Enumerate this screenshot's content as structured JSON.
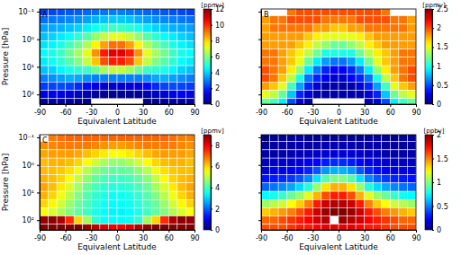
{
  "chart_data": [
    {
      "type": "heatmap",
      "title": "A",
      "x_label": "Equivalent Latitude",
      "y_label": "Pressure [hPa]",
      "log": "y",
      "xlim": [
        -90,
        90
      ],
      "xticks": [
        -90,
        -60,
        -30,
        0,
        30,
        60,
        90
      ],
      "ylim": [
        225,
        0.08
      ],
      "yticks": [
        {
          "value": 0.1,
          "label": "10⁻¹"
        },
        {
          "value": 1,
          "label": "10⁰"
        },
        {
          "value": 10,
          "label": "10¹"
        },
        {
          "value": 100,
          "label": "10²"
        }
      ],
      "x": [
        -85,
        -75,
        -65,
        -55,
        -45,
        -35,
        -25,
        -15,
        -5,
        5,
        15,
        25,
        35,
        45,
        55,
        65,
        75,
        85
      ],
      "y": [
        0.1,
        0.2,
        0.4,
        0.8,
        1.6,
        3.2,
        6.3,
        13,
        25,
        50,
        100,
        200
      ],
      "z": [
        [
          2.2,
          2.3,
          2.4,
          2.5,
          2.6,
          2.7,
          2.8,
          2.9,
          3.0,
          3.0,
          2.9,
          2.8,
          2.7,
          2.6,
          2.5,
          2.4,
          2.3,
          2.2
        ],
        [
          2.8,
          2.9,
          3.0,
          3.1,
          3.2,
          3.4,
          3.6,
          3.8,
          3.9,
          3.9,
          3.8,
          3.6,
          3.4,
          3.2,
          3.1,
          3.0,
          2.9,
          2.8
        ],
        [
          3.4,
          3.5,
          3.6,
          3.8,
          4.0,
          4.3,
          4.7,
          5.0,
          5.2,
          5.2,
          5.0,
          4.7,
          4.3,
          4.0,
          3.8,
          3.6,
          3.5,
          3.4
        ],
        [
          3.8,
          4.0,
          4.3,
          4.6,
          5.0,
          5.5,
          6.2,
          6.8,
          7.2,
          7.2,
          6.8,
          6.2,
          5.5,
          5.0,
          4.6,
          4.3,
          4.0,
          3.8
        ],
        [
          4.2,
          4.4,
          4.8,
          5.3,
          5.8,
          6.5,
          7.6,
          8.6,
          9.2,
          9.2,
          8.6,
          7.6,
          6.5,
          5.8,
          5.3,
          4.8,
          4.4,
          4.2
        ],
        [
          4.5,
          4.8,
          5.2,
          5.8,
          6.4,
          7.2,
          8.8,
          10.2,
          10.8,
          10.8,
          10.2,
          8.8,
          7.2,
          6.4,
          5.8,
          5.2,
          4.8,
          4.5
        ],
        [
          4.3,
          4.6,
          5.0,
          5.5,
          6.0,
          6.8,
          8.2,
          9.6,
          10.2,
          10.2,
          9.6,
          8.2,
          6.8,
          6.0,
          5.5,
          5.0,
          4.6,
          4.3
        ],
        [
          3.8,
          4.0,
          4.4,
          4.8,
          5.0,
          5.2,
          5.8,
          6.4,
          6.8,
          6.8,
          6.4,
          5.8,
          5.2,
          5.0,
          4.8,
          4.4,
          4.0,
          3.8
        ],
        [
          3.0,
          3.2,
          3.4,
          3.6,
          3.5,
          3.2,
          3.0,
          3.0,
          3.0,
          3.0,
          3.0,
          3.0,
          3.2,
          3.5,
          3.6,
          3.4,
          3.2,
          3.0
        ],
        [
          2.2,
          2.3,
          2.4,
          2.3,
          2.0,
          1.6,
          1.2,
          1.0,
          0.9,
          0.9,
          1.0,
          1.2,
          1.6,
          2.0,
          2.3,
          2.4,
          2.3,
          2.2
        ],
        [
          1.2,
          1.3,
          1.2,
          1.0,
          0.8,
          0.5,
          0.3,
          0.2,
          0.2,
          0.2,
          0.2,
          0.3,
          0.5,
          0.8,
          1.0,
          1.2,
          1.3,
          1.2
        ],
        [
          0.4,
          0.4,
          0.4,
          0.3,
          0.2,
          0.1,
          null,
          null,
          null,
          null,
          null,
          null,
          0.1,
          0.2,
          0.3,
          0.4,
          0.4,
          0.4
        ]
      ],
      "zlim": [
        0,
        12
      ],
      "zticks": [
        0,
        2,
        4,
        6,
        8,
        10,
        12
      ],
      "colorbar_label": "[ppmv]"
    },
    {
      "type": "heatmap",
      "title": "B",
      "x_label": "Equivalent Latitude",
      "log": "y",
      "tick_labels": "x",
      "xlim": [
        -90,
        90
      ],
      "xticks": [
        -90,
        -60,
        -30,
        0,
        30,
        60,
        90
      ],
      "ylim": [
        225,
        0.08
      ],
      "yticks": [
        0.1,
        1,
        10,
        100
      ],
      "x": [
        -85,
        -75,
        -65,
        -55,
        -45,
        -35,
        -25,
        -15,
        -5,
        5,
        15,
        25,
        35,
        45,
        55,
        65,
        75,
        85
      ],
      "y": [
        0.1,
        0.2,
        0.4,
        0.8,
        1.6,
        3.2,
        6.3,
        13,
        25,
        50,
        100,
        200
      ],
      "z": [
        [
          null,
          null,
          null,
          1.9,
          2.0,
          2.0,
          2.0,
          2.0,
          2.0,
          2.0,
          2.0,
          2.0,
          2.0,
          2.0,
          1.9,
          null,
          null,
          null
        ],
        [
          1.8,
          1.9,
          1.9,
          2.0,
          2.0,
          2.0,
          2.0,
          1.9,
          1.9,
          1.9,
          1.9,
          2.0,
          2.0,
          2.0,
          2.0,
          1.9,
          1.9,
          1.8
        ],
        [
          1.8,
          1.9,
          1.9,
          1.9,
          1.9,
          1.9,
          1.8,
          1.8,
          1.7,
          1.7,
          1.8,
          1.8,
          1.9,
          1.9,
          1.9,
          1.9,
          1.9,
          1.8
        ],
        [
          1.8,
          1.8,
          1.8,
          1.8,
          1.8,
          1.7,
          1.6,
          1.5,
          1.5,
          1.5,
          1.5,
          1.6,
          1.7,
          1.8,
          1.8,
          1.8,
          1.8,
          1.8
        ],
        [
          1.8,
          1.8,
          1.8,
          1.8,
          1.7,
          1.6,
          1.4,
          1.3,
          1.2,
          1.2,
          1.3,
          1.4,
          1.6,
          1.7,
          1.8,
          1.8,
          1.8,
          1.8
        ],
        [
          1.9,
          1.9,
          1.8,
          1.7,
          1.6,
          1.4,
          1.2,
          1.0,
          1.0,
          1.0,
          1.0,
          1.2,
          1.4,
          1.6,
          1.7,
          1.8,
          1.9,
          1.9
        ],
        [
          1.9,
          1.9,
          1.8,
          1.7,
          1.5,
          1.2,
          0.9,
          0.7,
          0.6,
          0.6,
          0.7,
          0.9,
          1.2,
          1.5,
          1.7,
          1.8,
          1.9,
          1.9
        ],
        [
          2.0,
          1.9,
          1.8,
          1.6,
          1.3,
          0.9,
          0.6,
          0.4,
          0.3,
          0.3,
          0.4,
          0.6,
          0.9,
          1.3,
          1.6,
          1.8,
          1.9,
          2.0
        ],
        [
          2.0,
          1.9,
          1.7,
          1.4,
          1.0,
          0.6,
          0.4,
          0.3,
          0.2,
          0.2,
          0.3,
          0.4,
          0.6,
          1.0,
          1.4,
          1.7,
          1.9,
          2.0
        ],
        [
          1.8,
          1.7,
          1.5,
          1.1,
          0.7,
          0.4,
          0.2,
          0.1,
          0.1,
          0.1,
          0.1,
          0.2,
          0.4,
          0.7,
          1.1,
          1.5,
          1.7,
          1.8
        ],
        [
          1.5,
          1.4,
          1.2,
          0.8,
          0.4,
          0.2,
          0.1,
          0.1,
          0.1,
          0.1,
          0.1,
          0.1,
          0.2,
          0.4,
          0.8,
          1.2,
          1.4,
          1.5
        ],
        [
          1.2,
          1.1,
          0.9,
          0.5,
          0.2,
          0.1,
          null,
          null,
          null,
          null,
          null,
          null,
          0.1,
          0.2,
          0.5,
          0.9,
          1.1,
          1.2
        ]
      ],
      "zlim": [
        0,
        2.5
      ],
      "zticks": [
        0,
        0.5,
        1,
        1.5,
        2,
        2.5
      ],
      "colorbar_label": "[ppmv]"
    },
    {
      "type": "heatmap",
      "title": "C",
      "x_label": "Equivalent Latitude",
      "y_label": "Pressure [hPa]",
      "log": "y",
      "xlim": [
        -90,
        90
      ],
      "xticks": [
        -90,
        -60,
        -30,
        0,
        30,
        60,
        90
      ],
      "ylim": [
        225,
        0.08
      ],
      "yticks": [
        {
          "value": 0.1,
          "label": "10⁻¹"
        },
        {
          "value": 1,
          "label": "10⁰"
        },
        {
          "value": 10,
          "label": "10¹"
        },
        {
          "value": 100,
          "label": "10²"
        }
      ],
      "x": [
        -85,
        -75,
        -65,
        -55,
        -45,
        -35,
        -25,
        -15,
        -5,
        5,
        15,
        25,
        35,
        45,
        55,
        65,
        75,
        85
      ],
      "y": [
        0.1,
        0.2,
        0.4,
        0.8,
        1.6,
        3.2,
        6.3,
        13,
        25,
        50,
        100,
        200
      ],
      "z": [
        [
          null,
          6.8,
          6.9,
          7.0,
          7.0,
          7.0,
          7.0,
          7.0,
          7.0,
          7.0,
          7.0,
          7.0,
          7.0,
          7.0,
          7.0,
          6.9,
          6.8,
          6.8
        ],
        [
          6.6,
          6.7,
          6.8,
          6.8,
          6.8,
          6.8,
          6.7,
          6.6,
          6.5,
          6.5,
          6.6,
          6.7,
          6.8,
          6.8,
          6.8,
          6.8,
          6.7,
          6.6
        ],
        [
          6.4,
          6.5,
          6.5,
          6.5,
          6.4,
          6.2,
          6.0,
          5.8,
          5.6,
          5.6,
          5.8,
          6.0,
          6.2,
          6.4,
          6.5,
          6.5,
          6.5,
          6.4
        ],
        [
          6.2,
          6.3,
          6.3,
          6.2,
          6.0,
          5.6,
          5.2,
          4.9,
          4.7,
          4.7,
          4.9,
          5.2,
          5.6,
          6.0,
          6.2,
          6.3,
          6.3,
          6.2
        ],
        [
          6.2,
          6.2,
          6.1,
          5.9,
          5.5,
          5.0,
          4.6,
          4.3,
          4.2,
          4.2,
          4.3,
          4.6,
          5.0,
          5.5,
          5.9,
          6.1,
          6.2,
          6.2
        ],
        [
          6.3,
          6.2,
          6.0,
          5.6,
          5.1,
          4.6,
          4.2,
          4.0,
          3.9,
          3.9,
          4.0,
          4.2,
          4.6,
          5.1,
          5.6,
          6.0,
          6.2,
          6.3
        ],
        [
          6.4,
          6.2,
          5.8,
          5.3,
          4.8,
          4.3,
          4.0,
          3.8,
          3.7,
          3.7,
          3.8,
          4.0,
          4.3,
          4.8,
          5.3,
          5.8,
          6.2,
          6.4
        ],
        [
          6.3,
          6.0,
          5.5,
          5.0,
          4.5,
          4.1,
          3.8,
          3.6,
          3.5,
          3.5,
          3.6,
          3.8,
          4.1,
          4.5,
          5.0,
          5.5,
          6.0,
          6.3
        ],
        [
          6.0,
          5.7,
          5.2,
          4.7,
          4.3,
          4.0,
          3.7,
          3.5,
          3.4,
          3.4,
          3.5,
          3.7,
          4.0,
          4.3,
          4.7,
          5.2,
          5.7,
          6.0
        ],
        [
          5.6,
          5.3,
          4.9,
          4.5,
          4.2,
          3.9,
          3.6,
          3.4,
          3.3,
          3.3,
          3.4,
          3.6,
          3.9,
          4.2,
          4.5,
          4.9,
          5.3,
          5.6
        ],
        [
          8.8,
          8.9,
          8.6,
          7.5,
          6.0,
          4.8,
          3.8,
          3.5,
          3.4,
          3.4,
          3.5,
          3.8,
          4.8,
          6.0,
          7.5,
          8.6,
          8.9,
          8.8
        ],
        [
          9.0,
          9.0,
          9.0,
          9.0,
          9.0,
          8.8,
          8.5,
          8.2,
          8.0,
          8.0,
          8.2,
          8.5,
          8.8,
          9.0,
          9.0,
          9.0,
          9.0,
          9.0
        ]
      ],
      "zlim": [
        0,
        9
      ],
      "zticks": [
        0,
        2,
        4,
        6,
        8
      ],
      "colorbar_label": "[ppmv]"
    },
    {
      "type": "heatmap",
      "title": "D",
      "x_label": "Equivalent Latitude",
      "log": "y",
      "tick_labels": "x",
      "xlim": [
        -90,
        90
      ],
      "xticks": [
        -90,
        -60,
        -30,
        0,
        30,
        60,
        90
      ],
      "ylim": [
        225,
        0.08
      ],
      "yticks": [
        0.1,
        1,
        10,
        100
      ],
      "x": [
        -85,
        -75,
        -65,
        -55,
        -45,
        -35,
        -25,
        -15,
        -5,
        5,
        15,
        25,
        35,
        45,
        55,
        65,
        75,
        85
      ],
      "y": [
        0.1,
        0.2,
        0.4,
        0.8,
        1.6,
        3.2,
        6.3,
        13,
        25,
        50,
        100,
        200
      ],
      "z": [
        [
          0.05,
          0.05,
          0.05,
          0.05,
          0.05,
          0.05,
          0.05,
          0.05,
          0.05,
          0.05,
          0.05,
          0.05,
          0.05,
          0.05,
          0.05,
          0.05,
          0.05,
          0.05
        ],
        [
          0.06,
          0.06,
          0.07,
          0.07,
          0.08,
          0.08,
          0.09,
          0.1,
          0.1,
          0.1,
          0.1,
          0.09,
          0.08,
          0.08,
          0.07,
          0.07,
          0.06,
          0.06
        ],
        [
          0.08,
          0.08,
          0.09,
          0.1,
          0.11,
          0.12,
          0.14,
          0.16,
          0.17,
          0.17,
          0.16,
          0.14,
          0.12,
          0.11,
          0.1,
          0.09,
          0.08,
          0.08
        ],
        [
          0.12,
          0.12,
          0.13,
          0.15,
          0.17,
          0.2,
          0.25,
          0.3,
          0.33,
          0.33,
          0.3,
          0.25,
          0.2,
          0.17,
          0.15,
          0.13,
          0.12,
          0.12
        ],
        [
          0.18,
          0.19,
          0.2,
          0.22,
          0.26,
          0.32,
          0.42,
          0.55,
          0.6,
          0.6,
          0.55,
          0.42,
          0.32,
          0.26,
          0.22,
          0.2,
          0.19,
          0.18
        ],
        [
          0.28,
          0.3,
          0.32,
          0.36,
          0.42,
          0.52,
          0.7,
          0.92,
          1.0,
          1.0,
          0.92,
          0.7,
          0.52,
          0.42,
          0.36,
          0.32,
          0.3,
          0.28
        ],
        [
          0.45,
          0.48,
          0.52,
          0.58,
          0.68,
          0.82,
          1.05,
          1.3,
          1.4,
          1.4,
          1.3,
          1.05,
          0.82,
          0.68,
          0.58,
          0.52,
          0.48,
          0.45
        ],
        [
          0.75,
          0.78,
          0.85,
          0.95,
          1.05,
          1.2,
          1.4,
          1.6,
          1.7,
          1.7,
          1.6,
          1.4,
          1.2,
          1.05,
          0.95,
          0.85,
          0.78,
          0.75
        ],
        [
          1.05,
          1.1,
          1.15,
          1.25,
          1.35,
          1.5,
          1.7,
          1.85,
          1.9,
          1.9,
          1.85,
          1.7,
          1.5,
          1.35,
          1.25,
          1.15,
          1.1,
          1.05
        ],
        [
          1.35,
          1.4,
          1.45,
          1.5,
          1.6,
          1.7,
          1.85,
          1.95,
          2.0,
          2.0,
          1.95,
          1.85,
          1.7,
          1.6,
          1.5,
          1.45,
          1.4,
          1.35
        ],
        [
          1.55,
          1.55,
          1.6,
          1.65,
          1.7,
          1.75,
          1.85,
          1.9,
          null,
          1.95,
          1.9,
          1.85,
          1.75,
          1.7,
          1.65,
          1.6,
          1.55,
          1.55
        ],
        [
          1.6,
          1.6,
          1.6,
          1.65,
          1.7,
          1.7,
          1.75,
          1.8,
          1.8,
          1.8,
          1.8,
          1.75,
          1.7,
          1.7,
          1.65,
          1.6,
          1.6,
          1.6
        ]
      ],
      "zlim": [
        0,
        2
      ],
      "zticks": [
        0,
        0.5,
        1,
        1.5,
        2
      ],
      "colorbar_label": "[ppbv]"
    }
  ]
}
